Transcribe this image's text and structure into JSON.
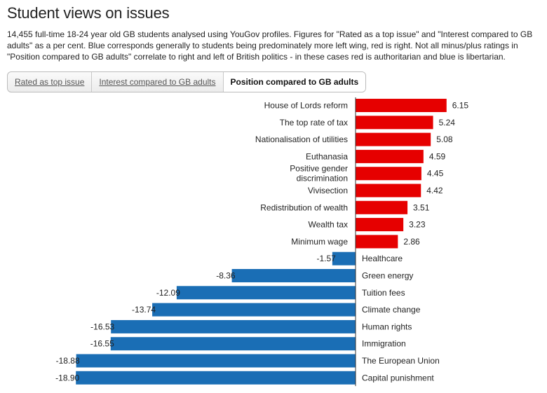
{
  "page": {
    "title": "Student views on issues",
    "description": "14,455 full-time 18-24 year old GB students analysed using YouGov profiles. Figures for \"Rated as a top issue\" and \"Interest compared to GB adults\" as a per cent. Blue corresponds generally to students being predominately more left wing, red is right. Not all minus/plus ratings in \"Position compared to GB adults\" correlate to right and left of British politics - in these cases red is authoritarian and blue is libertarian."
  },
  "tabs": [
    {
      "label": "Rated as top issue",
      "active": false
    },
    {
      "label": "Interest compared to GB adults",
      "active": false
    },
    {
      "label": "Position compared to GB adults",
      "active": true
    }
  ],
  "colors": {
    "positive": "#e60000",
    "negative": "#1a6eb5"
  },
  "chart_data": {
    "type": "bar",
    "orientation": "horizontal",
    "title": "Position compared to GB adults",
    "categories": [
      "House of Lords reform",
      "The top rate of tax",
      "Nationalisation of utilities",
      "Euthanasia",
      "Positive gender discrimination",
      "Vivisection",
      "Redistribution of wealth",
      "Wealth tax",
      "Minimum wage",
      "Healthcare",
      "Green energy",
      "Tuition fees",
      "Climate change",
      "Human rights",
      "Immigration",
      "The European Union",
      "Capital punishment"
    ],
    "values": [
      6.15,
      5.24,
      5.08,
      4.59,
      4.45,
      4.42,
      3.51,
      3.23,
      2.86,
      -1.57,
      -8.36,
      -12.09,
      -13.74,
      -16.53,
      -16.55,
      -18.88,
      -18.9
    ],
    "value_labels": [
      "6.15",
      "5.24",
      "5.08",
      "4.59",
      "4.45",
      "4.42",
      "3.51",
      "3.23",
      "2.86",
      "-1.57",
      "-8.36",
      "-12.09",
      "-13.74",
      "-16.53",
      "-16.55",
      "-18.88",
      "-18.90"
    ],
    "xlabel": "",
    "ylabel": "",
    "grid": false
  }
}
